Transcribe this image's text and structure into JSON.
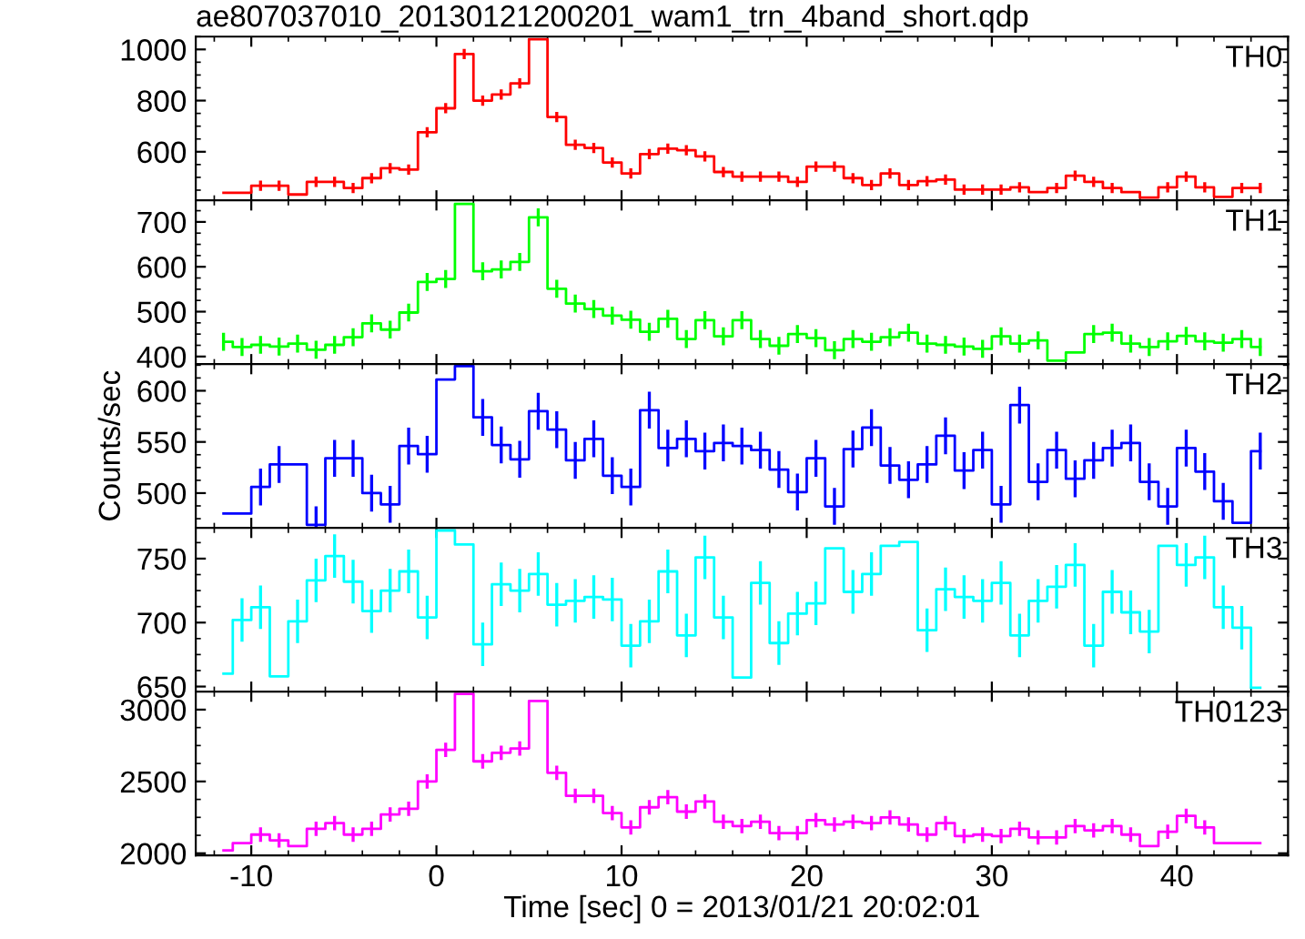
{
  "chart_data": [
    {
      "type": "step",
      "title": "ae807037010_20130121200201_wam1_trn_4band_short.qdp",
      "annotations": [
        "TH0"
      ],
      "tick_labels": "y",
      "grid": false,
      "marker": "none",
      "xlim": [
        -13,
        46
      ],
      "xticks": [
        -10,
        0,
        10,
        20,
        30,
        40
      ],
      "ylim": [
        410,
        1050
      ],
      "yticks": [
        600,
        800,
        1000
      ],
      "x": [
        -11.5,
        -10.5,
        -9.5,
        -8.5,
        -7.5,
        -6.5,
        -5.5,
        -4.5,
        -3.5,
        -2.5,
        -1.5,
        -0.5,
        0.5,
        1.5,
        2.5,
        3.5,
        4.5,
        5.5,
        6.5,
        7.5,
        8.5,
        9.5,
        10.5,
        11.5,
        12.5,
        13.5,
        14.5,
        15.5,
        16.5,
        17.5,
        18.5,
        19.5,
        20.5,
        21.5,
        22.5,
        23.5,
        24.5,
        25.5,
        26.5,
        27.5,
        28.5,
        29.5,
        30.5,
        31.5,
        32.5,
        33.5,
        34.5,
        35.5,
        36.5,
        37.5,
        38.5,
        39.5,
        40.5,
        41.5,
        42.5,
        43.5,
        44.5
      ],
      "series": [
        {
          "color": "#ff0000",
          "values": [
            440,
            440,
            467,
            467,
            433,
            482,
            482,
            458,
            497,
            536,
            530,
            676,
            770,
            982,
            800,
            824,
            867,
            1040,
            736,
            627,
            615,
            558,
            515,
            591,
            612,
            606,
            582,
            521,
            503,
            503,
            503,
            482,
            542,
            542,
            497,
            470,
            515,
            470,
            485,
            491,
            452,
            452,
            452,
            461,
            442,
            458,
            506,
            482,
            458,
            442,
            421,
            461,
            503,
            461,
            424,
            458,
            458
          ],
          "errors": [
            null,
            null,
            20,
            20,
            null,
            20,
            20,
            20,
            20,
            20,
            20,
            20,
            20,
            20,
            20,
            20,
            20,
            null,
            20,
            20,
            20,
            20,
            20,
            20,
            20,
            20,
            20,
            20,
            20,
            20,
            20,
            20,
            20,
            20,
            20,
            20,
            20,
            20,
            20,
            20,
            20,
            20,
            20,
            20,
            null,
            20,
            20,
            20,
            20,
            null,
            null,
            20,
            20,
            20,
            null,
            20,
            20
          ]
        }
      ]
    },
    {
      "type": "step",
      "annotations": [
        "TH1"
      ],
      "tick_labels": "y",
      "grid": false,
      "marker": "none",
      "xlim": [
        -13,
        46
      ],
      "xticks": [
        -10,
        0,
        10,
        20,
        30,
        40
      ],
      "ylim": [
        383,
        748
      ],
      "yticks": [
        400,
        500,
        600,
        700
      ],
      "x": [
        -11.5,
        -10.5,
        -9.5,
        -8.5,
        -7.5,
        -6.5,
        -5.5,
        -4.5,
        -3.5,
        -2.5,
        -1.5,
        -0.5,
        0.5,
        1.5,
        2.5,
        3.5,
        4.5,
        5.5,
        6.5,
        7.5,
        8.5,
        9.5,
        10.5,
        11.5,
        12.5,
        13.5,
        14.5,
        15.5,
        16.5,
        17.5,
        18.5,
        19.5,
        20.5,
        21.5,
        22.5,
        23.5,
        24.5,
        25.5,
        26.5,
        27.5,
        28.5,
        29.5,
        30.5,
        31.5,
        32.5,
        33.5,
        34.5,
        35.5,
        36.5,
        37.5,
        38.5,
        39.5,
        40.5,
        41.5,
        42.5,
        43.5,
        44.5
      ],
      "series": [
        {
          "color": "#00ff00",
          "values": [
            433,
            421,
            426,
            422,
            429,
            415,
            426,
            443,
            474,
            460,
            498,
            566,
            573,
            740,
            590,
            594,
            611,
            710,
            551,
            518,
            506,
            491,
            482,
            455,
            484,
            439,
            481,
            445,
            481,
            439,
            424,
            450,
            441,
            414,
            439,
            433,
            443,
            453,
            429,
            426,
            422,
            417,
            445,
            429,
            436,
            391,
            409,
            450,
            453,
            429,
            421,
            434,
            446,
            434,
            431,
            439,
            421
          ],
          "errors": [
            20,
            20,
            20,
            20,
            20,
            20,
            20,
            20,
            20,
            20,
            20,
            20,
            20,
            null,
            20,
            20,
            20,
            20,
            20,
            20,
            20,
            20,
            20,
            20,
            20,
            20,
            20,
            20,
            20,
            20,
            20,
            20,
            20,
            20,
            20,
            20,
            20,
            20,
            20,
            20,
            20,
            20,
            20,
            20,
            20,
            null,
            null,
            20,
            20,
            20,
            20,
            20,
            20,
            20,
            20,
            20,
            20
          ]
        }
      ]
    },
    {
      "type": "step",
      "annotations": [
        "TH2"
      ],
      "ylabel": "Counts/sec",
      "tick_labels": "y",
      "grid": false,
      "marker": "none",
      "xlim": [
        -13,
        46
      ],
      "xticks": [
        -10,
        0,
        10,
        20,
        30,
        40
      ],
      "ylim": [
        466,
        626
      ],
      "yticks": [
        500,
        550,
        600
      ],
      "x": [
        -11.5,
        -10.5,
        -9.5,
        -8.5,
        -7.5,
        -6.5,
        -5.5,
        -4.5,
        -3.5,
        -2.5,
        -1.5,
        -0.5,
        0.5,
        1.5,
        2.5,
        3.5,
        4.5,
        5.5,
        6.5,
        7.5,
        8.5,
        9.5,
        10.5,
        11.5,
        12.5,
        13.5,
        14.5,
        15.5,
        16.5,
        17.5,
        18.5,
        19.5,
        20.5,
        21.5,
        22.5,
        23.5,
        24.5,
        25.5,
        26.5,
        27.5,
        28.5,
        29.5,
        30.5,
        31.5,
        32.5,
        33.5,
        34.5,
        35.5,
        36.5,
        37.5,
        38.5,
        39.5,
        40.5,
        41.5,
        42.5,
        43.5,
        44.5
      ],
      "series": [
        {
          "color": "#0000ff",
          "values": [
            480,
            480,
            506,
            528,
            528,
            469,
            534,
            534,
            500,
            489,
            546,
            538,
            611,
            624,
            574,
            547,
            533,
            580,
            562,
            532,
            553,
            517,
            506,
            581,
            544,
            553,
            541,
            549,
            546,
            542,
            523,
            501,
            534,
            487,
            543,
            564,
            527,
            513,
            528,
            556,
            522,
            542,
            489,
            586,
            511,
            542,
            514,
            532,
            544,
            549,
            511,
            487,
            544,
            521,
            492,
            471,
            541
          ],
          "errors": [
            null,
            null,
            18,
            18,
            null,
            18,
            18,
            18,
            18,
            18,
            18,
            18,
            null,
            null,
            18,
            18,
            18,
            18,
            18,
            18,
            18,
            18,
            18,
            18,
            18,
            18,
            18,
            18,
            18,
            18,
            18,
            18,
            18,
            18,
            18,
            18,
            18,
            18,
            18,
            18,
            18,
            18,
            18,
            18,
            18,
            18,
            18,
            18,
            18,
            18,
            18,
            18,
            18,
            18,
            18,
            null,
            18
          ]
        }
      ]
    },
    {
      "type": "step",
      "annotations": [
        "TH3"
      ],
      "tick_labels": "y",
      "grid": false,
      "marker": "none",
      "xlim": [
        -13,
        46
      ],
      "xticks": [
        -10,
        0,
        10,
        20,
        30,
        40
      ],
      "ylim": [
        646,
        774
      ],
      "yticks": [
        650,
        700,
        750
      ],
      "x": [
        -11.5,
        -10.5,
        -9.5,
        -8.5,
        -7.5,
        -6.5,
        -5.5,
        -4.5,
        -3.5,
        -2.5,
        -1.5,
        -0.5,
        0.5,
        1.5,
        2.5,
        3.5,
        4.5,
        5.5,
        6.5,
        7.5,
        8.5,
        9.5,
        10.5,
        11.5,
        12.5,
        13.5,
        14.5,
        15.5,
        16.5,
        17.5,
        18.5,
        19.5,
        20.5,
        21.5,
        22.5,
        23.5,
        24.5,
        25.5,
        26.5,
        27.5,
        28.5,
        29.5,
        30.5,
        31.5,
        32.5,
        33.5,
        34.5,
        35.5,
        36.5,
        37.5,
        38.5,
        39.5,
        40.5,
        41.5,
        42.5,
        43.5,
        44.5
      ],
      "series": [
        {
          "color": "#00ffff",
          "values": [
            660,
            702,
            712,
            658,
            701,
            733,
            752,
            732,
            709,
            725,
            740,
            704,
            772,
            761,
            683,
            730,
            725,
            738,
            714,
            717,
            720,
            718,
            682,
            701,
            740,
            690,
            751,
            704,
            657,
            731,
            684,
            707,
            715,
            758,
            724,
            738,
            760,
            763,
            694,
            726,
            720,
            717,
            731,
            690,
            717,
            728,
            745,
            682,
            724,
            708,
            693,
            760,
            745,
            751,
            712,
            696,
            649
          ],
          "errors": [
            null,
            17,
            17,
            null,
            17,
            17,
            17,
            17,
            17,
            17,
            17,
            17,
            null,
            null,
            17,
            17,
            17,
            17,
            17,
            17,
            17,
            17,
            17,
            17,
            17,
            17,
            17,
            17,
            null,
            17,
            17,
            17,
            17,
            null,
            17,
            17,
            null,
            null,
            17,
            17,
            17,
            17,
            17,
            17,
            17,
            17,
            17,
            17,
            17,
            17,
            17,
            null,
            17,
            17,
            17,
            17,
            null
          ]
        }
      ]
    },
    {
      "type": "step",
      "annotations": [
        "TH0123"
      ],
      "xlabel": "Time [sec] 0 = 2013/01/21 20:02:01",
      "grid": false,
      "marker": "none",
      "xlim": [
        -13,
        46
      ],
      "xticks": [
        -10,
        0,
        10,
        20,
        30,
        40
      ],
      "ylim": [
        1985,
        3125
      ],
      "yticks": [
        2000,
        2500,
        3000
      ],
      "x": [
        -11.5,
        -10.5,
        -9.5,
        -8.5,
        -7.5,
        -6.5,
        -5.5,
        -4.5,
        -3.5,
        -2.5,
        -1.5,
        -0.5,
        0.5,
        1.5,
        2.5,
        3.5,
        4.5,
        5.5,
        6.5,
        7.5,
        8.5,
        9.5,
        10.5,
        11.5,
        12.5,
        13.5,
        14.5,
        15.5,
        16.5,
        17.5,
        18.5,
        19.5,
        20.5,
        21.5,
        22.5,
        23.5,
        24.5,
        25.5,
        26.5,
        27.5,
        28.5,
        29.5,
        30.5,
        31.5,
        32.5,
        33.5,
        34.5,
        35.5,
        36.5,
        37.5,
        38.5,
        39.5,
        40.5,
        41.5,
        42.5,
        43.5,
        44.5
      ],
      "series": [
        {
          "color": "#ff00ff",
          "values": [
            2020,
            2070,
            2130,
            2090,
            2050,
            2170,
            2210,
            2130,
            2170,
            2270,
            2310,
            2500,
            2720,
            3110,
            2640,
            2700,
            2730,
            3060,
            2560,
            2400,
            2400,
            2280,
            2180,
            2320,
            2390,
            2290,
            2360,
            2220,
            2190,
            2220,
            2140,
            2140,
            2230,
            2200,
            2220,
            2210,
            2250,
            2200,
            2130,
            2210,
            2120,
            2130,
            2120,
            2170,
            2110,
            2110,
            2190,
            2160,
            2190,
            2130,
            2050,
            2150,
            2260,
            2180,
            2070,
            2070,
            2070
          ],
          "errors": [
            null,
            null,
            50,
            50,
            null,
            50,
            50,
            50,
            50,
            50,
            50,
            50,
            50,
            null,
            50,
            50,
            50,
            null,
            50,
            50,
            50,
            50,
            50,
            50,
            50,
            50,
            50,
            50,
            50,
            50,
            50,
            50,
            50,
            50,
            50,
            50,
            50,
            50,
            50,
            50,
            50,
            50,
            50,
            50,
            50,
            50,
            50,
            50,
            50,
            50,
            null,
            50,
            50,
            50,
            null,
            null,
            null
          ]
        }
      ]
    }
  ]
}
